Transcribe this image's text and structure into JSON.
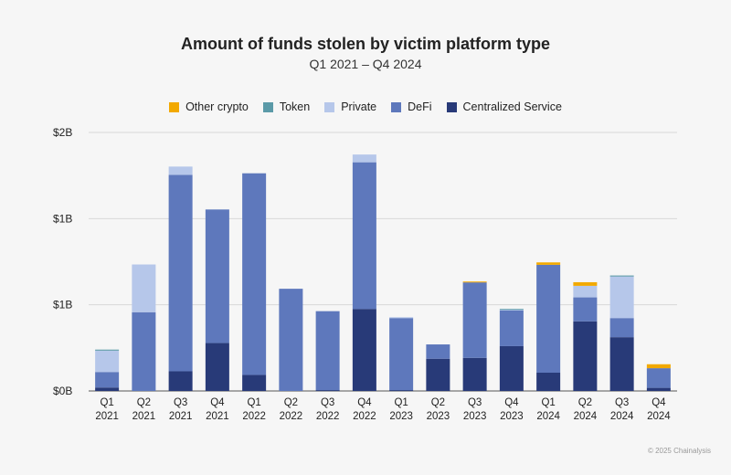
{
  "chart_data": {
    "type": "bar",
    "stacked": true,
    "title": "Amount of funds stolen by victim platform type",
    "subtitle": "Q1 2021 – Q4 2024",
    "categories": [
      [
        "Q1",
        "2021"
      ],
      [
        "Q2",
        "2021"
      ],
      [
        "Q3",
        "2021"
      ],
      [
        "Q4",
        "2021"
      ],
      [
        "Q1",
        "2022"
      ],
      [
        "Q2",
        "2022"
      ],
      [
        "Q3",
        "2022"
      ],
      [
        "Q4",
        "2022"
      ],
      [
        "Q1",
        "2023"
      ],
      [
        "Q2",
        "2023"
      ],
      [
        "Q3",
        "2023"
      ],
      [
        "Q4",
        "2023"
      ],
      [
        "Q1",
        "2024"
      ],
      [
        "Q2",
        "2024"
      ],
      [
        "Q3",
        "2024"
      ],
      [
        "Q4",
        "2024"
      ]
    ],
    "series": [
      {
        "name": "Centralized Service",
        "color": "#283a78",
        "values": [
          0.02,
          0,
          0.114,
          0.278,
          0.093,
          0,
          0.005,
          0.476,
          0.005,
          0.187,
          0.192,
          0.26,
          0.106,
          0.404,
          0.312,
          0.018
        ]
      },
      {
        "name": "DeFi",
        "color": "#5e78bc",
        "values": [
          0.09,
          0.457,
          1.14,
          0.775,
          1.17,
          0.593,
          0.458,
          0.851,
          0.418,
          0.083,
          0.438,
          0.207,
          0.626,
          0.139,
          0.111,
          0.114
        ]
      },
      {
        "name": "Private",
        "color": "#b6c7ea",
        "values": [
          0.124,
          0.277,
          0.048,
          0,
          0,
          0,
          0,
          0.045,
          0.005,
          0,
          0,
          0.005,
          0,
          0.067,
          0.241,
          0
        ]
      },
      {
        "name": "Token",
        "color": "#5b9aa8",
        "values": [
          0.006,
          0,
          0,
          0,
          0,
          0,
          0,
          0,
          0,
          0,
          0,
          0.004,
          0,
          0,
          0.006,
          0
        ]
      },
      {
        "name": "Other crypto",
        "color": "#f2a900",
        "values": [
          0,
          0,
          0,
          0,
          0,
          0,
          0,
          0,
          0,
          0,
          0.005,
          0,
          0.014,
          0.021,
          0,
          0.023
        ]
      }
    ],
    "legend_order": [
      "Other crypto",
      "Token",
      "Private",
      "DeFi",
      "Centralized Service"
    ],
    "y_ticks": [
      {
        "value": 0,
        "label": "$0B"
      },
      {
        "value": 0.5,
        "label": "$1B"
      },
      {
        "value": 1.0,
        "label": "$1B"
      },
      {
        "value": 1.5,
        "label": "$2B"
      }
    ],
    "ylim": [
      0,
      1.5
    ],
    "unit": "billions USD",
    "grid": true,
    "legend_position": "top"
  },
  "footer": "© 2025 Chainalysis"
}
